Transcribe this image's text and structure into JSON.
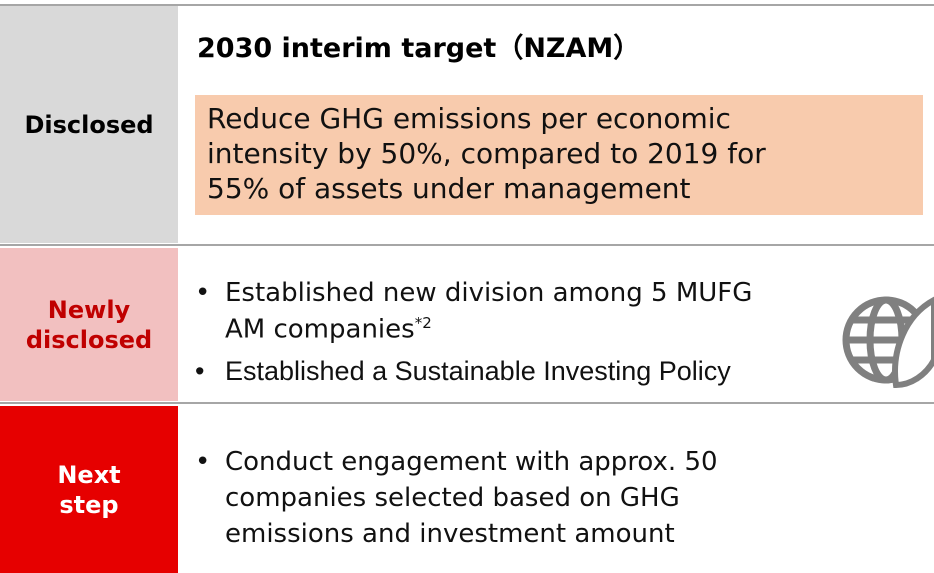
{
  "rows": [
    {
      "label": "Disclosed",
      "title": "2030 interim target（NZAM）",
      "box_lines": [
        "Reduce GHG emissions per economic",
        "intensity by 50%, compared to 2019 for",
        "55% of assets under management"
      ]
    },
    {
      "label_lines": [
        "Newly",
        "disclosed"
      ],
      "bullets": [
        {
          "lines": [
            "Established new division among 5 MUFG",
            "AM companies"
          ],
          "sup": "*2"
        },
        {
          "lines": [
            "Established a Sustainable Investing Policy"
          ]
        }
      ]
    },
    {
      "label_lines": [
        "Next",
        "step"
      ],
      "bullets": [
        {
          "lines": [
            "Conduct engagement with approx. 50",
            "companies selected based on GHG",
            "emissions and investment amount"
          ]
        }
      ]
    }
  ]
}
